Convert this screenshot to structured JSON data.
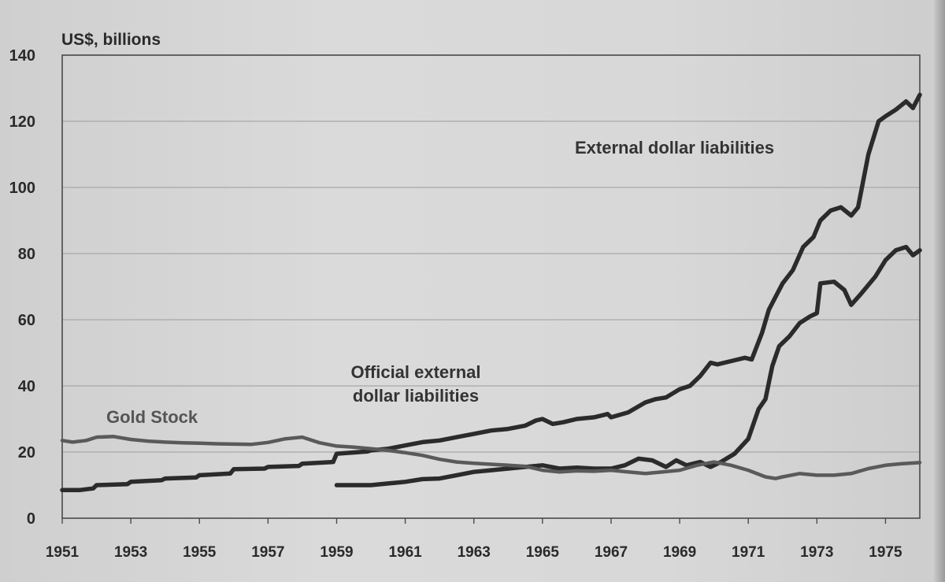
{
  "chart_data": {
    "type": "line",
    "ylabel": "US$, billions",
    "ylim": [
      0,
      140
    ],
    "xlim": [
      1951,
      1976
    ],
    "yticks": [
      0,
      20,
      40,
      60,
      80,
      100,
      120,
      140
    ],
    "xticks": [
      "1951",
      "1953",
      "1955",
      "1957",
      "1959",
      "1961",
      "1963",
      "1965",
      "1967",
      "1969",
      "1971",
      "1973",
      "1975"
    ],
    "grid": "horizontal",
    "legend": "none",
    "colors": {
      "external": "#2b2b2b",
      "official": "#2b2b2b",
      "gold": "#5a5a5a",
      "grid": "#a8a8a8"
    },
    "annotations": [
      {
        "series": "external",
        "lines": [
          "External dollar liabilities"
        ]
      },
      {
        "series": "official",
        "lines": [
          "Official external",
          "dollar liabilities"
        ]
      },
      {
        "series": "gold",
        "lines": [
          "Gold Stock"
        ]
      }
    ],
    "series": [
      {
        "key": "external",
        "name": "External dollar liabilities",
        "points": [
          [
            1951.0,
            8.5
          ],
          [
            1951.5,
            8.5
          ],
          [
            1951.9,
            9.0
          ],
          [
            1952.0,
            10.0
          ],
          [
            1952.9,
            10.3
          ],
          [
            1953.0,
            11.0
          ],
          [
            1953.9,
            11.5
          ],
          [
            1954.0,
            12.0
          ],
          [
            1954.9,
            12.3
          ],
          [
            1955.0,
            13.0
          ],
          [
            1955.9,
            13.5
          ],
          [
            1956.0,
            14.8
          ],
          [
            1956.9,
            15.0
          ],
          [
            1957.0,
            15.5
          ],
          [
            1957.9,
            15.8
          ],
          [
            1958.0,
            16.5
          ],
          [
            1958.9,
            17.0
          ],
          [
            1959.0,
            19.5
          ],
          [
            1959.9,
            20.2
          ],
          [
            1960.0,
            20.5
          ],
          [
            1960.5,
            21.0
          ],
          [
            1961.0,
            22.0
          ],
          [
            1961.5,
            23.0
          ],
          [
            1962.0,
            23.5
          ],
          [
            1962.5,
            24.5
          ],
          [
            1963.0,
            25.5
          ],
          [
            1963.5,
            26.5
          ],
          [
            1964.0,
            27.0
          ],
          [
            1964.5,
            28.0
          ],
          [
            1964.8,
            29.5
          ],
          [
            1965.0,
            30.0
          ],
          [
            1965.3,
            28.5
          ],
          [
            1965.6,
            29.0
          ],
          [
            1966.0,
            30.0
          ],
          [
            1966.5,
            30.5
          ],
          [
            1966.9,
            31.5
          ],
          [
            1967.0,
            30.5
          ],
          [
            1967.5,
            32.0
          ],
          [
            1968.0,
            35.0
          ],
          [
            1968.3,
            36.0
          ],
          [
            1968.6,
            36.5
          ],
          [
            1969.0,
            39.0
          ],
          [
            1969.3,
            40.0
          ],
          [
            1969.6,
            43.0
          ],
          [
            1969.9,
            47.0
          ],
          [
            1970.1,
            46.5
          ],
          [
            1970.5,
            47.5
          ],
          [
            1970.9,
            48.5
          ],
          [
            1971.1,
            48.0
          ],
          [
            1971.4,
            56.0
          ],
          [
            1971.6,
            63.0
          ],
          [
            1971.8,
            67.0
          ],
          [
            1972.0,
            71.0
          ],
          [
            1972.3,
            75.0
          ],
          [
            1972.6,
            82.0
          ],
          [
            1972.9,
            85.0
          ],
          [
            1973.1,
            90.0
          ],
          [
            1973.4,
            93.0
          ],
          [
            1973.7,
            94.0
          ],
          [
            1974.0,
            91.5
          ],
          [
            1974.2,
            94.0
          ],
          [
            1974.5,
            110.0
          ],
          [
            1974.8,
            120.0
          ],
          [
            1975.0,
            121.5
          ],
          [
            1975.3,
            123.5
          ],
          [
            1975.6,
            126.0
          ],
          [
            1975.8,
            124.0
          ],
          [
            1976.0,
            128.0
          ]
        ]
      },
      {
        "key": "official",
        "name": "Official external dollar liabilities",
        "points": [
          [
            1959.0,
            10.0
          ],
          [
            1959.5,
            10.0
          ],
          [
            1960.0,
            10.0
          ],
          [
            1960.5,
            10.5
          ],
          [
            1961.0,
            11.0
          ],
          [
            1961.5,
            11.8
          ],
          [
            1962.0,
            12.0
          ],
          [
            1962.5,
            13.0
          ],
          [
            1963.0,
            14.0
          ],
          [
            1963.5,
            14.5
          ],
          [
            1964.0,
            15.0
          ],
          [
            1964.5,
            15.5
          ],
          [
            1965.0,
            16.0
          ],
          [
            1965.5,
            15.0
          ],
          [
            1966.0,
            15.3
          ],
          [
            1966.5,
            15.0
          ],
          [
            1967.0,
            15.0
          ],
          [
            1967.4,
            16.0
          ],
          [
            1967.8,
            18.0
          ],
          [
            1968.2,
            17.5
          ],
          [
            1968.6,
            15.5
          ],
          [
            1968.9,
            17.5
          ],
          [
            1969.2,
            16.0
          ],
          [
            1969.6,
            17.0
          ],
          [
            1969.9,
            15.5
          ],
          [
            1970.2,
            17.0
          ],
          [
            1970.6,
            19.5
          ],
          [
            1971.0,
            24.0
          ],
          [
            1971.3,
            33.0
          ],
          [
            1971.5,
            36.0
          ],
          [
            1971.7,
            46.0
          ],
          [
            1971.9,
            52.0
          ],
          [
            1972.2,
            55.0
          ],
          [
            1972.5,
            59.0
          ],
          [
            1972.8,
            61.0
          ],
          [
            1973.0,
            62.0
          ],
          [
            1973.1,
            71.0
          ],
          [
            1973.5,
            71.5
          ],
          [
            1973.8,
            69.0
          ],
          [
            1974.0,
            64.5
          ],
          [
            1974.3,
            68.0
          ],
          [
            1974.7,
            73.0
          ],
          [
            1975.0,
            78.0
          ],
          [
            1975.3,
            81.0
          ],
          [
            1975.6,
            82.0
          ],
          [
            1975.8,
            79.5
          ],
          [
            1976.0,
            81.0
          ]
        ]
      },
      {
        "key": "gold",
        "name": "Gold Stock",
        "points": [
          [
            1951.0,
            23.5
          ],
          [
            1951.3,
            23.0
          ],
          [
            1951.7,
            23.5
          ],
          [
            1952.0,
            24.5
          ],
          [
            1952.5,
            24.7
          ],
          [
            1953.0,
            23.8
          ],
          [
            1953.5,
            23.3
          ],
          [
            1954.0,
            23.0
          ],
          [
            1954.5,
            22.8
          ],
          [
            1955.0,
            22.7
          ],
          [
            1955.5,
            22.5
          ],
          [
            1956.0,
            22.4
          ],
          [
            1956.5,
            22.3
          ],
          [
            1957.0,
            22.9
          ],
          [
            1957.5,
            24.0
          ],
          [
            1958.0,
            24.5
          ],
          [
            1958.5,
            22.8
          ],
          [
            1959.0,
            21.8
          ],
          [
            1959.5,
            21.5
          ],
          [
            1960.0,
            21.0
          ],
          [
            1960.5,
            20.5
          ],
          [
            1961.0,
            19.8
          ],
          [
            1961.5,
            19.0
          ],
          [
            1962.0,
            17.8
          ],
          [
            1962.5,
            17.0
          ],
          [
            1963.0,
            16.6
          ],
          [
            1963.5,
            16.3
          ],
          [
            1964.0,
            16.0
          ],
          [
            1964.5,
            15.7
          ],
          [
            1965.0,
            14.5
          ],
          [
            1965.5,
            14.0
          ],
          [
            1966.0,
            14.3
          ],
          [
            1966.5,
            14.2
          ],
          [
            1967.0,
            14.5
          ],
          [
            1967.5,
            14.0
          ],
          [
            1968.0,
            13.5
          ],
          [
            1968.5,
            14.0
          ],
          [
            1969.0,
            14.5
          ],
          [
            1969.5,
            16.0
          ],
          [
            1970.0,
            17.0
          ],
          [
            1970.5,
            16.0
          ],
          [
            1971.0,
            14.5
          ],
          [
            1971.5,
            12.5
          ],
          [
            1971.8,
            12.0
          ],
          [
            1972.0,
            12.5
          ],
          [
            1972.5,
            13.5
          ],
          [
            1973.0,
            13.0
          ],
          [
            1973.5,
            13.0
          ],
          [
            1974.0,
            13.5
          ],
          [
            1974.5,
            15.0
          ],
          [
            1975.0,
            16.0
          ],
          [
            1975.5,
            16.5
          ],
          [
            1976.0,
            16.8
          ]
        ]
      }
    ]
  }
}
